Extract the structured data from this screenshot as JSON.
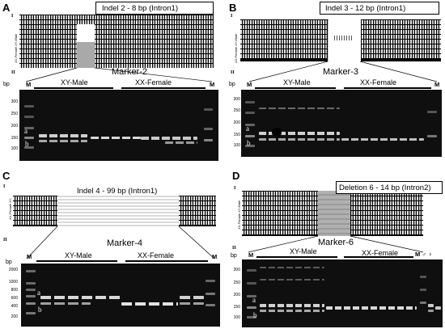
{
  "figure": {
    "panels": [
      {
        "letter": "A",
        "section_i": "I",
        "section_ii": "II",
        "title": "Indel 2 - 8 bp (Intron1)",
        "side_label": "XX-Female XY-Male",
        "marker": "Marker-2",
        "axis_unit": "bp",
        "ticks": [
          "300",
          "250",
          "200",
          "150",
          "100"
        ],
        "lane_left": "M",
        "lane_right": "M",
        "group1": "XY-Male",
        "group2": "XX-Female",
        "band_a": "a",
        "band_b": "b"
      },
      {
        "letter": "B",
        "section_i": "I",
        "section_ii": "II",
        "title": "Indel 3 - 12 bp (Intron1)",
        "side_label": "XX-Female XY-Male",
        "marker": "Marker-3",
        "axis_unit": "bp",
        "ticks": [
          "300",
          "250",
          "200",
          "150",
          "100"
        ],
        "lane_left": "M",
        "lane_right": "M",
        "group1": "XY-Male",
        "group2": "XX-Female",
        "band_a": "a",
        "band_b": "b"
      },
      {
        "letter": "C",
        "section_i": "I",
        "section_ii": "II",
        "title": "Indel 4 - 99 bp (Intron1)",
        "side_label": "XX-Female XY-Male",
        "marker": "Marker-4",
        "axis_unit": "bp",
        "ticks": [
          "2000",
          "1000",
          "800",
          "600",
          "400",
          "200"
        ],
        "lane_left": "M",
        "lane_right": "M",
        "group1": "XY-Male",
        "group2": "XX-Female",
        "band_a": "a",
        "band_b": "b"
      },
      {
        "letter": "D",
        "section_i": "I",
        "section_ii": "II",
        "title": "Deletion 6 - 14 bp (Intron2)",
        "side_label": "XX-Female XY-Male",
        "marker": "Marker-6",
        "axis_unit": "bp",
        "ticks": [
          "300",
          "250",
          "200",
          "150",
          "100"
        ],
        "lane_left": "M",
        "lane_right": "M ♂ ♀",
        "group1": "XY-Male",
        "group2": "XX-Female",
        "band_a": "a",
        "band_b": "b"
      }
    ]
  }
}
